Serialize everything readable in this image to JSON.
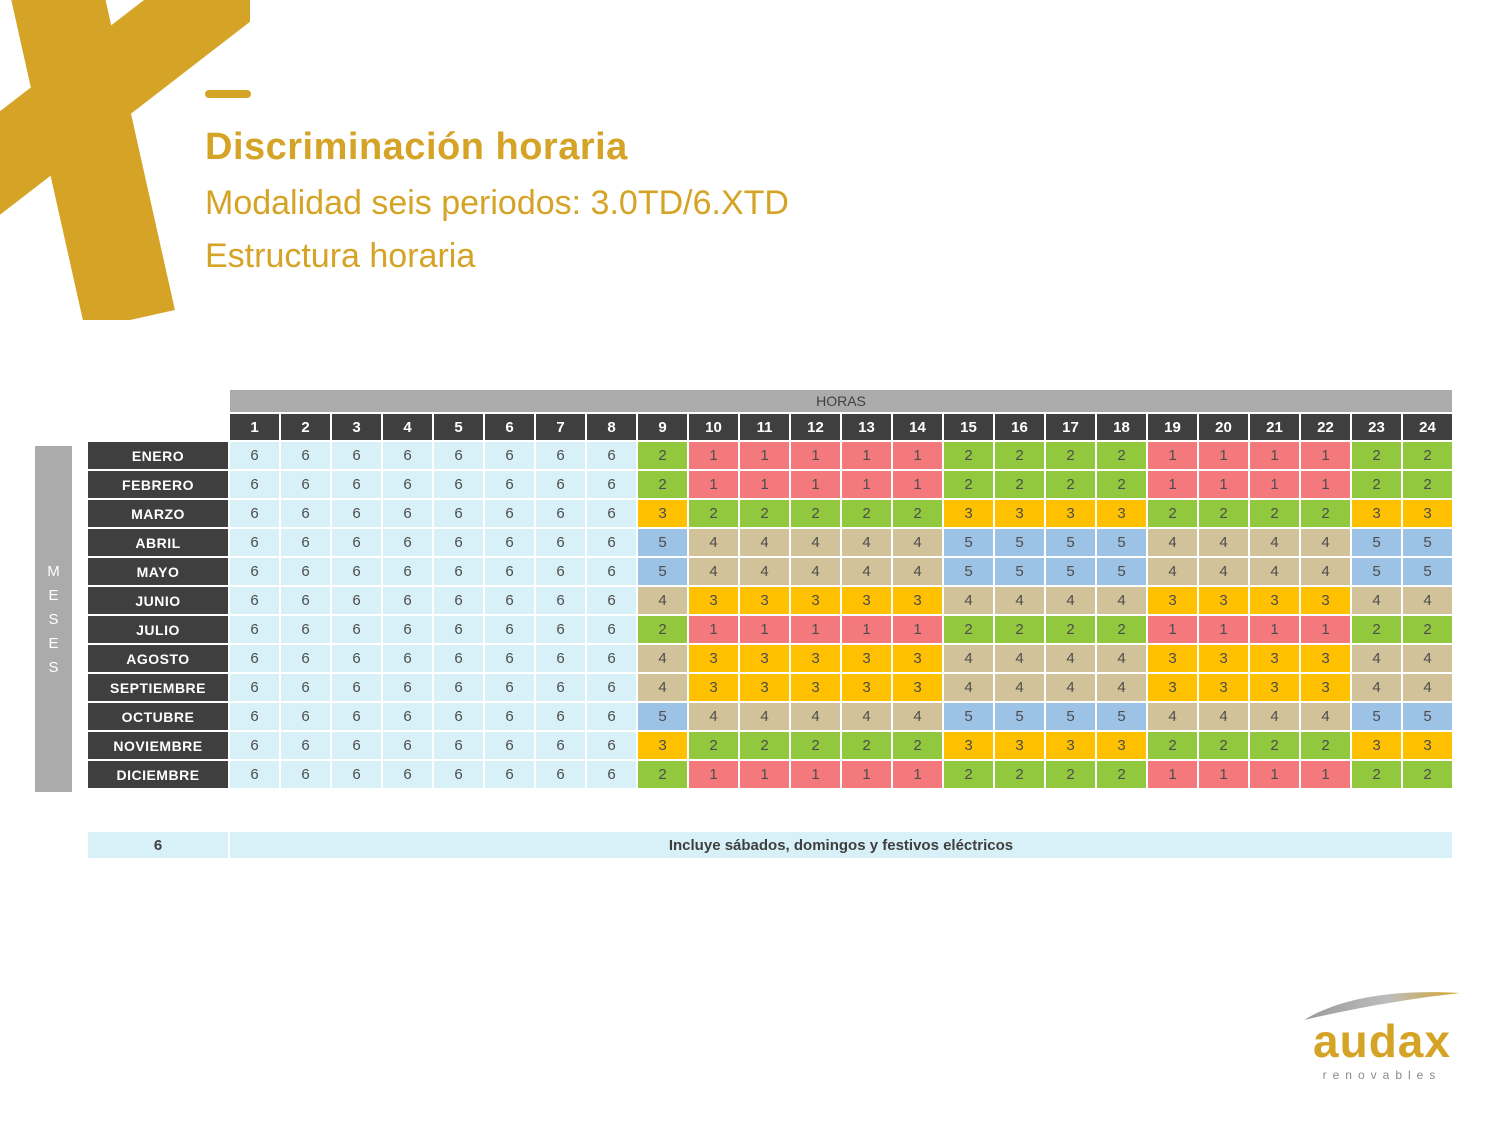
{
  "slide": {
    "title": "Discriminación horaria",
    "subtitle": "Modalidad seis periodos: 3.0TD/6.XTD",
    "subtitle2": "Estructura horaria"
  },
  "brand": {
    "name": "audax",
    "tagline": "renovables",
    "gold": "#D5A326",
    "gray": "#8A8A8A"
  },
  "chart_data": {
    "type": "heatmap",
    "title": "Estructura horaria - Modalidad seis periodos: 3.0TD/6.XTD",
    "x_axis_header": "HORAS",
    "y_axis_header": "MESES",
    "hours": [
      1,
      2,
      3,
      4,
      5,
      6,
      7,
      8,
      9,
      10,
      11,
      12,
      13,
      14,
      15,
      16,
      17,
      18,
      19,
      20,
      21,
      22,
      23,
      24
    ],
    "series": [
      {
        "month": "ENERO",
        "values": [
          6,
          6,
          6,
          6,
          6,
          6,
          6,
          6,
          2,
          1,
          1,
          1,
          1,
          1,
          2,
          2,
          2,
          2,
          1,
          1,
          1,
          1,
          2,
          2
        ]
      },
      {
        "month": "FEBRERO",
        "values": [
          6,
          6,
          6,
          6,
          6,
          6,
          6,
          6,
          2,
          1,
          1,
          1,
          1,
          1,
          2,
          2,
          2,
          2,
          1,
          1,
          1,
          1,
          2,
          2
        ]
      },
      {
        "month": "MARZO",
        "values": [
          6,
          6,
          6,
          6,
          6,
          6,
          6,
          6,
          3,
          2,
          2,
          2,
          2,
          2,
          3,
          3,
          3,
          3,
          2,
          2,
          2,
          2,
          3,
          3
        ]
      },
      {
        "month": "ABRIL",
        "values": [
          6,
          6,
          6,
          6,
          6,
          6,
          6,
          6,
          5,
          4,
          4,
          4,
          4,
          4,
          5,
          5,
          5,
          5,
          4,
          4,
          4,
          4,
          5,
          5
        ]
      },
      {
        "month": "MAYO",
        "values": [
          6,
          6,
          6,
          6,
          6,
          6,
          6,
          6,
          5,
          4,
          4,
          4,
          4,
          4,
          5,
          5,
          5,
          5,
          4,
          4,
          4,
          4,
          5,
          5
        ]
      },
      {
        "month": "JUNIO",
        "values": [
          6,
          6,
          6,
          6,
          6,
          6,
          6,
          6,
          4,
          3,
          3,
          3,
          3,
          3,
          4,
          4,
          4,
          4,
          3,
          3,
          3,
          3,
          4,
          4
        ]
      },
      {
        "month": "JULIO",
        "values": [
          6,
          6,
          6,
          6,
          6,
          6,
          6,
          6,
          2,
          1,
          1,
          1,
          1,
          1,
          2,
          2,
          2,
          2,
          1,
          1,
          1,
          1,
          2,
          2
        ]
      },
      {
        "month": "AGOSTO",
        "values": [
          6,
          6,
          6,
          6,
          6,
          6,
          6,
          6,
          4,
          3,
          3,
          3,
          3,
          3,
          4,
          4,
          4,
          4,
          3,
          3,
          3,
          3,
          4,
          4
        ]
      },
      {
        "month": "SEPTIEMBRE",
        "values": [
          6,
          6,
          6,
          6,
          6,
          6,
          6,
          6,
          4,
          3,
          3,
          3,
          3,
          3,
          4,
          4,
          4,
          4,
          3,
          3,
          3,
          3,
          4,
          4
        ]
      },
      {
        "month": "OCTUBRE",
        "values": [
          6,
          6,
          6,
          6,
          6,
          6,
          6,
          6,
          5,
          4,
          4,
          4,
          4,
          4,
          5,
          5,
          5,
          5,
          4,
          4,
          4,
          4,
          5,
          5
        ]
      },
      {
        "month": "NOVIEMBRE",
        "values": [
          6,
          6,
          6,
          6,
          6,
          6,
          6,
          6,
          3,
          2,
          2,
          2,
          2,
          2,
          3,
          3,
          3,
          3,
          2,
          2,
          2,
          2,
          3,
          3
        ]
      },
      {
        "month": "DICIEMBRE",
        "values": [
          6,
          6,
          6,
          6,
          6,
          6,
          6,
          6,
          2,
          1,
          1,
          1,
          1,
          1,
          2,
          2,
          2,
          2,
          1,
          1,
          1,
          1,
          2,
          2
        ]
      }
    ],
    "period_colors": {
      "1": "#F4797C",
      "2": "#92C83E",
      "3": "#FFC000",
      "4": "#D2C299",
      "5": "#9CC2E5",
      "6": "#D8F1F8"
    },
    "header_dark": "#3F3F3F",
    "header_gray": "#ABABAB",
    "legend": {
      "value": "6",
      "label": "Incluye sábados, domingos y festivos eléctricos"
    }
  }
}
